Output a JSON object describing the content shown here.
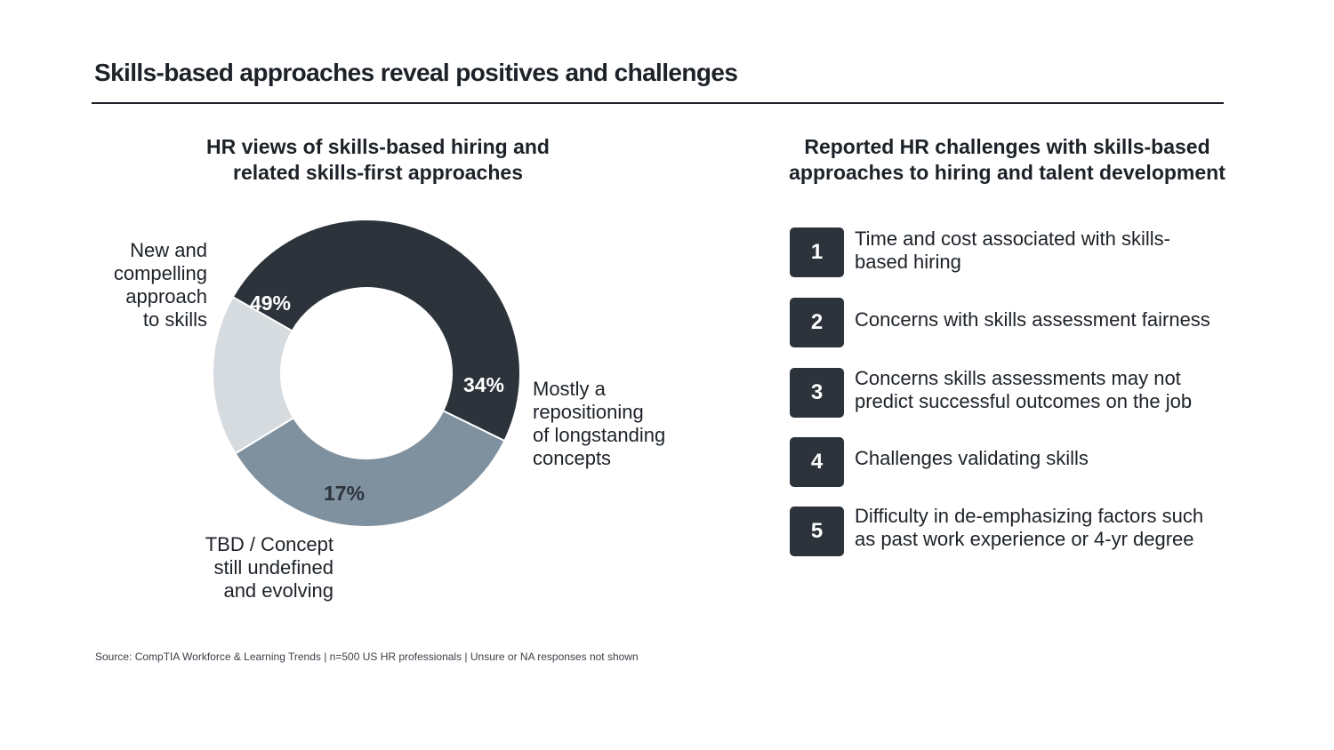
{
  "page": {
    "title": "Skills-based approaches reveal positives and challenges",
    "source": "Source: CompTIA Workforce & Learning Trends | n=500 US HR professionals | Unsure or NA responses not shown"
  },
  "left_panel": {
    "title_lines": [
      "HR views of skills-based hiring and",
      "related skills-first approaches"
    ]
  },
  "chart_data": {
    "type": "pie",
    "title": "HR views of skills-based hiring and related skills-first approaches",
    "categories": [
      "New and compelling approach to skills",
      "Mostly a repositioning of longstanding concepts",
      "TBD / Concept still undefined and evolving"
    ],
    "values": [
      49,
      34,
      17
    ],
    "unit": "%",
    "data_labels": [
      "49%",
      "34%",
      "17%"
    ],
    "category_label_lines": [
      [
        "New and",
        "compelling",
        "approach",
        "to skills"
      ],
      [
        "Mostly a",
        "repositioning",
        "of longstanding",
        "concepts"
      ],
      [
        "TBD / Concept",
        "still undefined",
        "and evolving"
      ]
    ],
    "colors": [
      "#2c333b",
      "#7f909f",
      "#d6dbe0"
    ],
    "label_text_colors": [
      "#ffffff",
      "#ffffff",
      "#2c333b"
    ],
    "donut": true,
    "legend": "none"
  },
  "right_panel": {
    "title_lines": [
      "Reported HR challenges with skills-based",
      "approaches to hiring and talent development"
    ],
    "items": [
      {
        "number": "1",
        "lines": [
          "Time and cost associated with skills-",
          "based hiring"
        ]
      },
      {
        "number": "2",
        "lines": [
          "Concerns with skills assessment fairness"
        ]
      },
      {
        "number": "3",
        "lines": [
          "Concerns skills assessments may not",
          "predict successful outcomes on the job"
        ]
      },
      {
        "number": "4",
        "lines": [
          "Challenges validating skills"
        ]
      },
      {
        "number": "5",
        "lines": [
          "Difficulty in de-emphasizing factors such",
          "as past work experience or 4-yr degree"
        ]
      }
    ]
  }
}
